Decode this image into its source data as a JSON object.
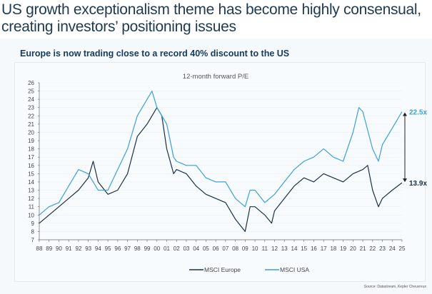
{
  "headline": "US growth exceptionalism theme has become highly consensual, creating investors’ positioning issues",
  "chart_data": {
    "type": "line",
    "title": "Europe is now trading close to a record 40% discount to the US",
    "subtitle": "12-month forward P/E",
    "xlabel": "",
    "ylabel": "",
    "xlim": [
      1988,
      2025
    ],
    "ylim": [
      7,
      26
    ],
    "x_tick_labels": [
      "88",
      "89",
      "90",
      "91",
      "92",
      "93",
      "94",
      "95",
      "96",
      "97",
      "98",
      "99",
      "00",
      "01",
      "02",
      "03",
      "04",
      "05",
      "06",
      "07",
      "08",
      "09",
      "10",
      "11",
      "12",
      "13",
      "14",
      "15",
      "16",
      "17",
      "18",
      "19",
      "20",
      "21",
      "22",
      "23",
      "24",
      "25"
    ],
    "y_ticks": [
      7,
      8,
      9,
      10,
      11,
      12,
      13,
      14,
      15,
      16,
      17,
      18,
      19,
      20,
      21,
      22,
      23,
      24,
      25,
      26
    ],
    "grid": "horizontal dotted",
    "legend_position": "bottom",
    "series": [
      {
        "name": "MSCI Europe",
        "color": "#1c2f45",
        "x": [
          1988,
          1989,
          1990,
          1991,
          1992,
          1993,
          1993.5,
          1994,
          1995,
          1996,
          1997,
          1998,
          1999,
          2000,
          2000.5,
          2001,
          2001.7,
          2002,
          2003,
          2004,
          2005,
          2006,
          2007,
          2008,
          2009,
          2009.5,
          2010,
          2011,
          2011.7,
          2012,
          2013,
          2014,
          2015,
          2016,
          2017,
          2018,
          2019,
          2020,
          2021,
          2021.5,
          2022,
          2022.6,
          2023,
          2024,
          2025
        ],
        "values": [
          9,
          10,
          11,
          12,
          13,
          14.5,
          16.5,
          14,
          12.5,
          13,
          15,
          19.5,
          21,
          23,
          22,
          18,
          15,
          15.5,
          15,
          13.5,
          12.5,
          12,
          11.5,
          9.5,
          8,
          11,
          11,
          10,
          9,
          10.5,
          12,
          13.5,
          14.5,
          14,
          15,
          14.5,
          14,
          15,
          15.5,
          16,
          13,
          11,
          12,
          13,
          13.9
        ]
      },
      {
        "name": "MSCI USA",
        "color": "#3aa0d8",
        "x": [
          1988,
          1989,
          1990,
          1991,
          1992,
          1993,
          1994,
          1995,
          1996,
          1997,
          1998,
          1999,
          1999.5,
          2000,
          2001,
          2001.7,
          2002,
          2003,
          2004,
          2005,
          2006,
          2007,
          2008,
          2009,
          2009.5,
          2010,
          2011,
          2012,
          2013,
          2014,
          2015,
          2016,
          2017,
          2018,
          2019,
          2020,
          2020.6,
          2021,
          2022,
          2022.6,
          2023,
          2024,
          2025
        ],
        "values": [
          10,
          11,
          11.5,
          13.5,
          15.5,
          15,
          13,
          13,
          15.5,
          18,
          22,
          24,
          25,
          23,
          21,
          17,
          16.5,
          16,
          16,
          14.5,
          14,
          14,
          12,
          11,
          13,
          13,
          11.5,
          12.5,
          14,
          15.5,
          16.5,
          17,
          18,
          17,
          16.5,
          20,
          23,
          22.5,
          18,
          16.5,
          18.5,
          20.5,
          22.5
        ]
      }
    ],
    "annotations": [
      {
        "label": "22.5x",
        "series": "MSCI USA",
        "value": 22.5
      },
      {
        "label": "13.9x",
        "series": "MSCI Europe",
        "value": 13.9
      }
    ]
  },
  "source": "Source: Datastream, Kepler Cheuvreux"
}
